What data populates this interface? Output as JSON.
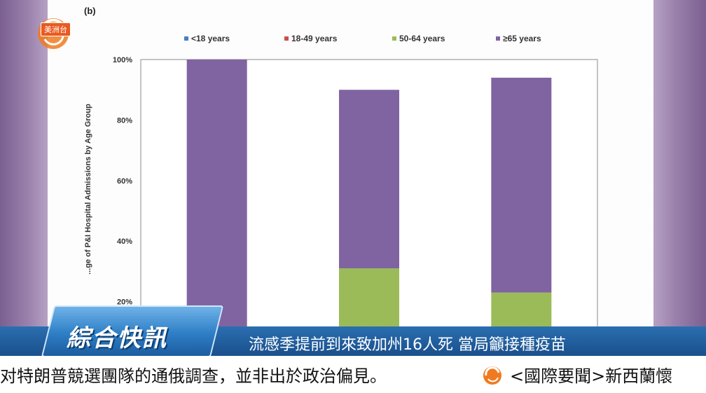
{
  "panel_label": "(b)",
  "channel_logo_text": "美洲台",
  "news_badge": "綜合快訊",
  "headline": "流感季提前到來致加州16人死 當局籲接種疫苗",
  "ticker": {
    "left_text": "对特朗普競選團隊的通俄調查，並非出於政治偏見。",
    "right_text": "<國際要聞>新西蘭懷"
  },
  "colors": {
    "under18": "#4a7fc1",
    "age18_49": "#c9504f",
    "age50_64": "#9bbb59",
    "age65plus": "#8064a2"
  },
  "chart_data": {
    "type": "bar",
    "stacked": true,
    "ylabel": "...ge of P&I Hospital Admissions by Age Group",
    "ylim": [
      0,
      100
    ],
    "yticks": [
      "100%",
      "80%",
      "60%",
      "40%",
      "20%"
    ],
    "ytick_values": [
      100,
      80,
      60,
      40,
      20
    ],
    "legend": [
      "<18 years",
      "18-49 years",
      "50-64 years",
      "≥65 years"
    ],
    "categories": [
      "",
      "",
      ""
    ],
    "series": [
      {
        "name": "<18 years",
        "values": [
          0,
          0,
          0
        ]
      },
      {
        "name": "18-49 years",
        "values": [
          0,
          11,
          0
        ]
      },
      {
        "name": "50-64 years",
        "values": [
          8,
          20,
          23
        ]
      },
      {
        "name": "≥65 years",
        "values": [
          92,
          59,
          71
        ]
      }
    ],
    "note": ""
  }
}
